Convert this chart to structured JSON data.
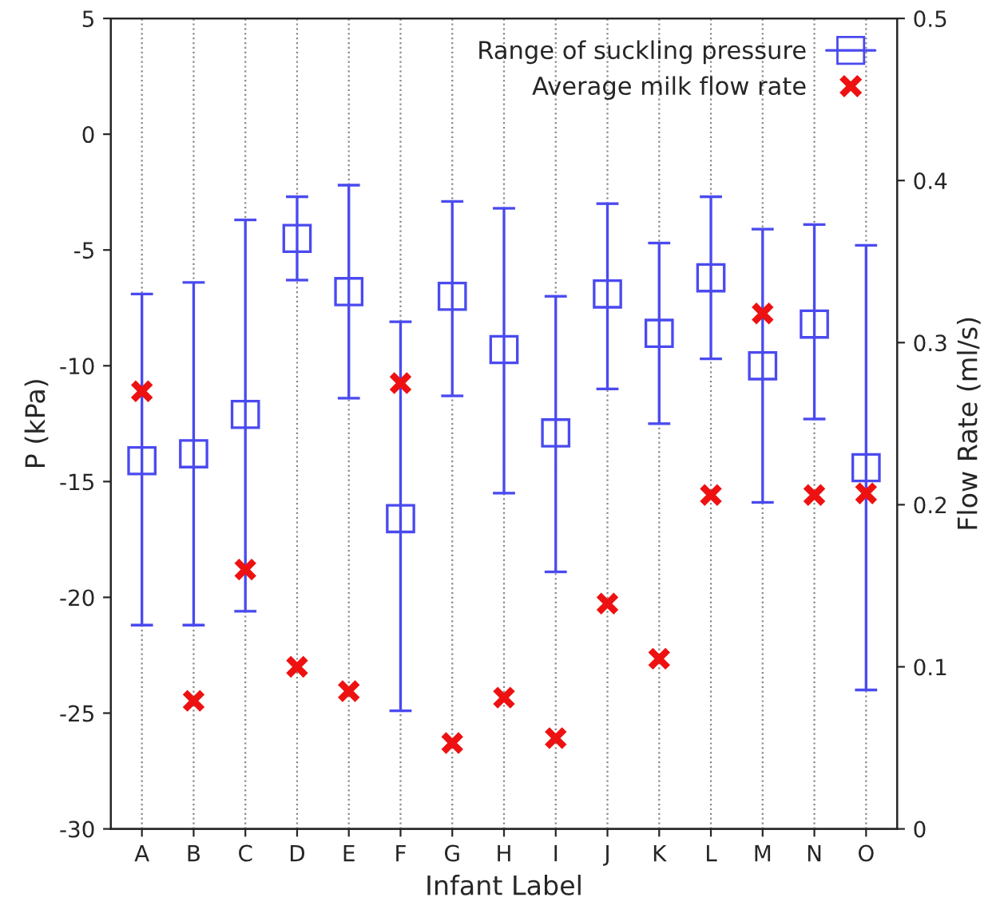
{
  "chart_data": {
    "type": "scatter",
    "xlabel": "Infant Label",
    "ylabel": "P (kPa)",
    "y2label": "Flow Rate (ml/s)",
    "categories": [
      "A",
      "B",
      "C",
      "D",
      "E",
      "F",
      "G",
      "H",
      "I",
      "J",
      "K",
      "L",
      "M",
      "N",
      "O"
    ],
    "series": [
      {
        "name": "Range of suckling pressure",
        "color": "#4a4af0",
        "marker": "square",
        "values": [
          -14.1,
          -13.8,
          -12.1,
          -4.5,
          -6.8,
          -16.6,
          -7.0,
          -9.3,
          -12.9,
          -6.9,
          -8.6,
          -6.2,
          -10.0,
          -8.2,
          -14.4
        ],
        "errors": [
          [
            -21.2,
            -6.9
          ],
          [
            -21.2,
            -6.4
          ],
          [
            -20.6,
            -3.7
          ],
          [
            -6.3,
            -2.7
          ],
          [
            -11.4,
            -2.2
          ],
          [
            -24.9,
            -8.1
          ],
          [
            -11.3,
            -2.9
          ],
          [
            -15.5,
            -3.2
          ],
          [
            -18.9,
            -7.0
          ],
          [
            -11.0,
            -3.0
          ],
          [
            -12.5,
            -4.7
          ],
          [
            -9.7,
            -2.7
          ],
          [
            -15.9,
            -4.1
          ],
          [
            -12.3,
            -3.9
          ],
          [
            -24.0,
            -4.8
          ]
        ]
      },
      {
        "name": "Average milk flow rate",
        "color": "#ee1111",
        "marker": "cross",
        "axis": "y2",
        "values": [
          0.27,
          0.079,
          0.16,
          0.1,
          0.085,
          0.275,
          0.053,
          0.081,
          0.056,
          0.139,
          0.105,
          0.206,
          0.318,
          0.206,
          0.207
        ]
      }
    ],
    "ylim": [
      -30,
      5
    ],
    "yticks": [
      -30,
      -25,
      -20,
      -15,
      -10,
      -5,
      0,
      5
    ],
    "y2lim": [
      0,
      0.5
    ],
    "y2ticks": [
      0,
      0.1,
      0.2,
      0.3,
      0.4,
      0.5
    ],
    "grid": "x",
    "legend": "top right"
  }
}
